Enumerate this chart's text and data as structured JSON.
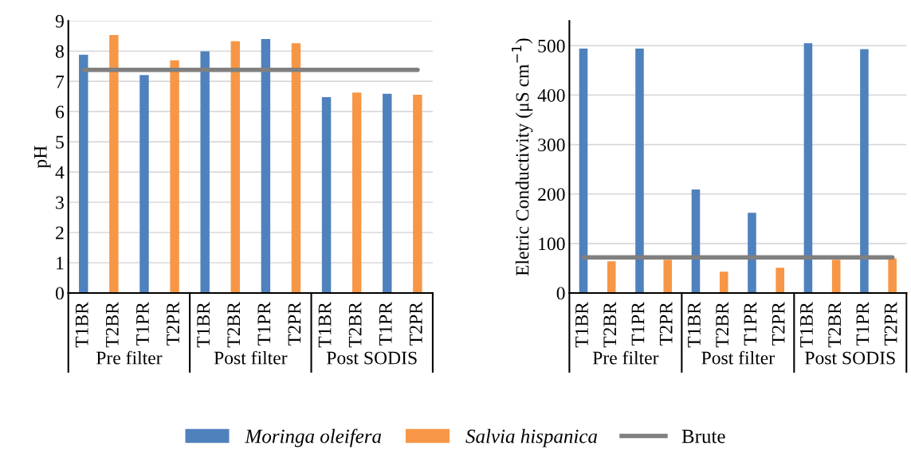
{
  "chart_data": [
    {
      "type": "bar",
      "ylabel": "pH",
      "categories": [
        "T1BR",
        "T2BR",
        "T1PR",
        "T2PR",
        "T1BR",
        "T2BR",
        "T1PR",
        "T2PR",
        "T1BR",
        "T2BR",
        "T1PR",
        "T2PR"
      ],
      "series": [
        {
          "name": "Moringa oleifera",
          "color": "#4f81bd",
          "values": [
            7.88,
            null,
            7.21,
            null,
            7.99,
            null,
            8.4,
            null,
            6.48,
            null,
            6.59,
            null
          ]
        },
        {
          "name": "Salvia hispanica",
          "color": "#f79646",
          "values": [
            null,
            8.53,
            null,
            7.7,
            null,
            8.33,
            null,
            8.26,
            null,
            6.63,
            null,
            6.56
          ]
        },
        {
          "name": "Brute",
          "type": "line",
          "color": "#808080",
          "values": [
            7.38,
            7.38,
            7.38,
            7.38,
            7.38,
            7.38,
            7.38,
            7.38,
            7.38,
            7.38,
            7.38,
            7.38
          ]
        }
      ],
      "ylim": [
        0,
        9
      ],
      "yticks": [
        0,
        1,
        2,
        3,
        4,
        5,
        6,
        7,
        8,
        9
      ],
      "grid": "y",
      "legend": "bottom",
      "annotations": [
        "Pre filter",
        "Post filter",
        "Post SODIS"
      ]
    },
    {
      "type": "bar",
      "ylabel": "Eletric Conductivity (μS cm$^{−1}$)",
      "categories": [
        "T1BR",
        "T2BR",
        "T1PR",
        "T2PR",
        "T1BR",
        "T2BR",
        "T1PR",
        "T2PR",
        "T1BR",
        "T2BR",
        "T1PR",
        "T2PR"
      ],
      "series": [
        {
          "name": "Moringa oleifera",
          "color": "#4f81bd",
          "values": [
            494,
            null,
            494,
            null,
            209,
            null,
            162,
            null,
            505,
            null,
            493,
            null
          ]
        },
        {
          "name": "Salvia hispanica",
          "color": "#f79646",
          "values": [
            null,
            64,
            null,
            67,
            null,
            43,
            null,
            51,
            null,
            67,
            null,
            70
          ]
        },
        {
          "name": "Brute",
          "type": "line",
          "color": "#808080",
          "values": [
            72,
            72,
            72,
            72,
            72,
            72,
            72,
            72,
            72,
            72,
            72,
            72
          ]
        }
      ],
      "ylim": [
        0,
        550
      ],
      "yticks": [
        0,
        100,
        200,
        300,
        400,
        500
      ],
      "grid": "y",
      "annotations": [
        "Pre filter",
        "Post filter",
        "Post SODIS"
      ]
    }
  ]
}
